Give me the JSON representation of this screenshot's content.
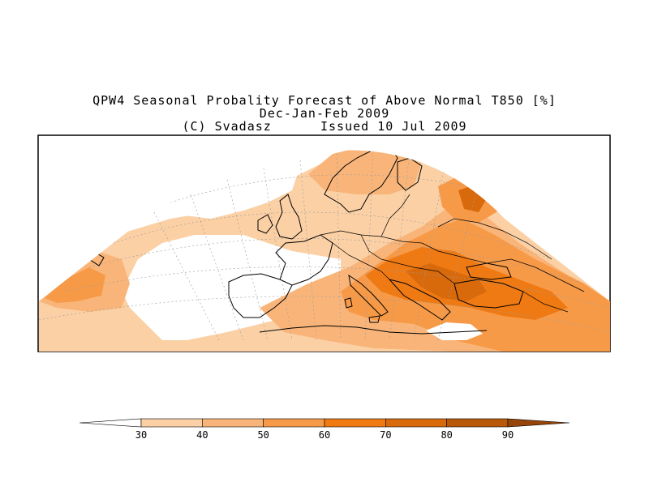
{
  "title": {
    "line1": "QPW4 Seasonal Probality Forecast of Above Normal T850 [%]",
    "line2": "Dec-Jan-Feb 2009",
    "line3": "(C) Svadasz      Issued 10 Jul 2009"
  },
  "legend": {
    "ticks": [
      "30",
      "40",
      "50",
      "60",
      "70",
      "80",
      "90"
    ],
    "colors": [
      "#ffffff",
      "#fbd0a5",
      "#f9b579",
      "#f79a48",
      "#ef7a14",
      "#d86a0c",
      "#b8590a",
      "#954508"
    ]
  },
  "map": {
    "region": "Europe and North Atlantic",
    "background": "#ffffff",
    "frame_color": "#000000"
  }
}
